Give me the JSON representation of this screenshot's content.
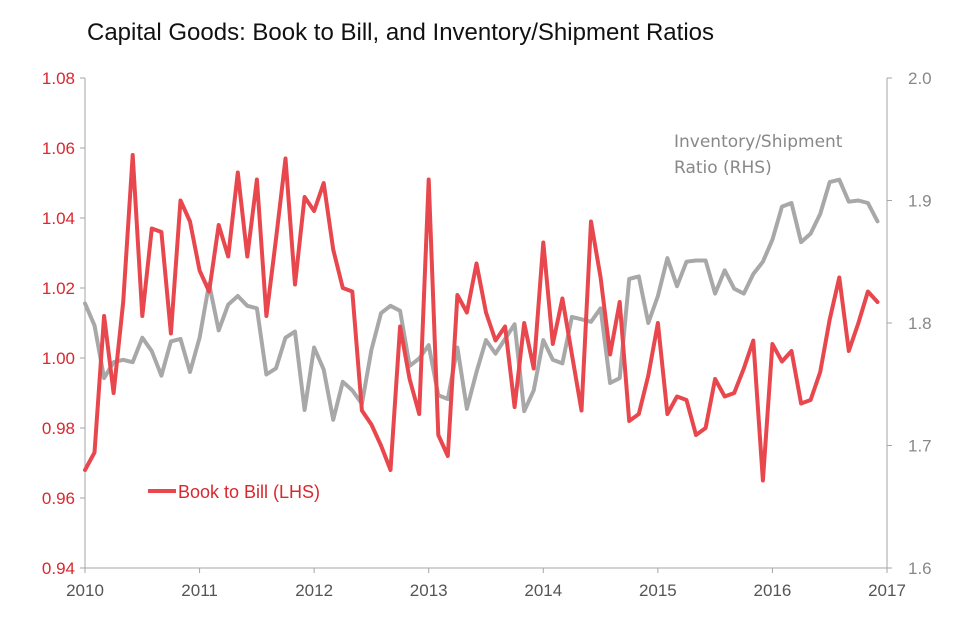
{
  "chart_data": {
    "type": "line",
    "title": "Capital Goods: Book to Bill, and Inventory/Shipment Ratios",
    "x_ticks": [
      "2010",
      "2011",
      "2012",
      "2013",
      "2014",
      "2015",
      "2016",
      "2017"
    ],
    "x_range": [
      2010,
      2017
    ],
    "y_left": {
      "range": [
        0.94,
        1.08
      ],
      "ticks": [
        "0.94",
        "0.96",
        "0.98",
        "1.00",
        "1.02",
        "1.04",
        "1.06",
        "1.08"
      ]
    },
    "y_right": {
      "range": [
        1.6,
        2.0
      ],
      "ticks": [
        "1.6",
        "1.7",
        "1.8",
        "1.9",
        "2.0"
      ]
    },
    "grid": false,
    "legend_position": "bottom-left",
    "series": [
      {
        "name": "Book to Bill (LHS)",
        "axis": "left",
        "color": "#e8474d",
        "x": [
          "2010-01",
          "2010-02",
          "2010-03",
          "2010-04",
          "2010-05",
          "2010-06",
          "2010-07",
          "2010-08",
          "2010-09",
          "2010-10",
          "2010-11",
          "2010-12",
          "2011-01",
          "2011-02",
          "2011-03",
          "2011-04",
          "2011-05",
          "2011-06",
          "2011-07",
          "2011-08",
          "2011-09",
          "2011-10",
          "2011-11",
          "2011-12",
          "2012-01",
          "2012-02",
          "2012-03",
          "2012-04",
          "2012-05",
          "2012-06",
          "2012-07",
          "2012-08",
          "2012-09",
          "2012-10",
          "2012-11",
          "2012-12",
          "2013-01",
          "2013-02",
          "2013-03",
          "2013-04",
          "2013-05",
          "2013-06",
          "2013-07",
          "2013-08",
          "2013-09",
          "2013-10",
          "2013-11",
          "2013-12",
          "2014-01",
          "2014-02",
          "2014-03",
          "2014-04",
          "2014-05",
          "2014-06",
          "2014-07",
          "2014-08",
          "2014-09",
          "2014-10",
          "2014-11",
          "2014-12",
          "2015-01",
          "2015-02",
          "2015-03",
          "2015-04",
          "2015-05",
          "2015-06",
          "2015-07",
          "2015-08",
          "2015-09",
          "2015-10",
          "2015-11",
          "2015-12",
          "2016-01",
          "2016-02",
          "2016-03",
          "2016-04",
          "2016-05",
          "2016-06",
          "2016-07",
          "2016-08",
          "2016-09",
          "2016-10",
          "2016-11",
          "2016-12"
        ],
        "values": [
          0.968,
          0.973,
          1.012,
          0.99,
          1.016,
          1.058,
          1.012,
          1.037,
          1.036,
          1.007,
          1.045,
          1.039,
          1.025,
          1.019,
          1.038,
          1.029,
          1.053,
          1.029,
          1.051,
          1.012,
          1.034,
          1.057,
          1.021,
          1.046,
          1.042,
          1.05,
          1.031,
          1.02,
          1.019,
          0.985,
          0.981,
          0.975,
          0.968,
          1.009,
          0.994,
          0.984,
          1.051,
          0.978,
          0.972,
          1.018,
          1.013,
          1.027,
          1.013,
          1.005,
          1.009,
          0.986,
          1.01,
          0.997,
          1.033,
          1.004,
          1.017,
          1.001,
          0.985,
          1.039,
          1.023,
          1.001,
          1.016,
          0.982,
          0.984,
          0.995,
          1.01,
          0.984,
          0.989,
          0.988,
          0.978,
          0.98,
          0.994,
          0.989,
          0.99,
          0.997,
          1.005,
          0.965,
          1.004,
          0.999,
          1.002,
          0.987,
          0.988,
          0.996,
          1.011,
          1.023,
          1.002,
          1.01,
          1.019,
          1.016
        ]
      },
      {
        "name": "Inventory/Shipment Ratio (RHS)",
        "axis": "right",
        "color": "#a8a8a8",
        "x": [
          "2010-01",
          "2010-02",
          "2010-03",
          "2010-04",
          "2010-05",
          "2010-06",
          "2010-07",
          "2010-08",
          "2010-09",
          "2010-10",
          "2010-11",
          "2010-12",
          "2011-01",
          "2011-02",
          "2011-03",
          "2011-04",
          "2011-05",
          "2011-06",
          "2011-07",
          "2011-08",
          "2011-09",
          "2011-10",
          "2011-11",
          "2011-12",
          "2012-01",
          "2012-02",
          "2012-03",
          "2012-04",
          "2012-05",
          "2012-06",
          "2012-07",
          "2012-08",
          "2012-09",
          "2012-10",
          "2012-11",
          "2012-12",
          "2013-01",
          "2013-02",
          "2013-03",
          "2013-04",
          "2013-05",
          "2013-06",
          "2013-07",
          "2013-08",
          "2013-09",
          "2013-10",
          "2013-11",
          "2013-12",
          "2014-01",
          "2014-02",
          "2014-03",
          "2014-04",
          "2014-05",
          "2014-06",
          "2014-07",
          "2014-08",
          "2014-09",
          "2014-10",
          "2014-11",
          "2014-12",
          "2015-01",
          "2015-02",
          "2015-03",
          "2015-04",
          "2015-05",
          "2015-06",
          "2015-07",
          "2015-08",
          "2015-09",
          "2015-10",
          "2015-11",
          "2015-12",
          "2016-01",
          "2016-02",
          "2016-03",
          "2016-04",
          "2016-05",
          "2016-06",
          "2016-07",
          "2016-08",
          "2016-09",
          "2016-10",
          "2016-11",
          "2016-12"
        ],
        "values": [
          1.816,
          1.798,
          1.755,
          1.768,
          1.77,
          1.768,
          1.788,
          1.777,
          1.757,
          1.785,
          1.787,
          1.76,
          1.788,
          1.832,
          1.794,
          1.815,
          1.822,
          1.814,
          1.812,
          1.758,
          1.763,
          1.788,
          1.793,
          1.729,
          1.78,
          1.762,
          1.721,
          1.752,
          1.745,
          1.734,
          1.778,
          1.808,
          1.814,
          1.81,
          1.765,
          1.771,
          1.782,
          1.741,
          1.738,
          1.78,
          1.73,
          1.76,
          1.786,
          1.775,
          1.787,
          1.799,
          1.728,
          1.745,
          1.786,
          1.77,
          1.767,
          1.805,
          1.803,
          1.801,
          1.812,
          1.751,
          1.755,
          1.836,
          1.838,
          1.8,
          1.822,
          1.853,
          1.83,
          1.85,
          1.851,
          1.851,
          1.824,
          1.843,
          1.828,
          1.824,
          1.84,
          1.85,
          1.868,
          1.895,
          1.898,
          1.866,
          1.873,
          1.889,
          1.915,
          1.917,
          1.899,
          1.9,
          1.898,
          1.883
        ]
      }
    ],
    "legend_label": "Book to Bill (LHS)",
    "annotation_rhs": [
      "Inventory/Shipment",
      "Ratio (RHS)"
    ]
  }
}
